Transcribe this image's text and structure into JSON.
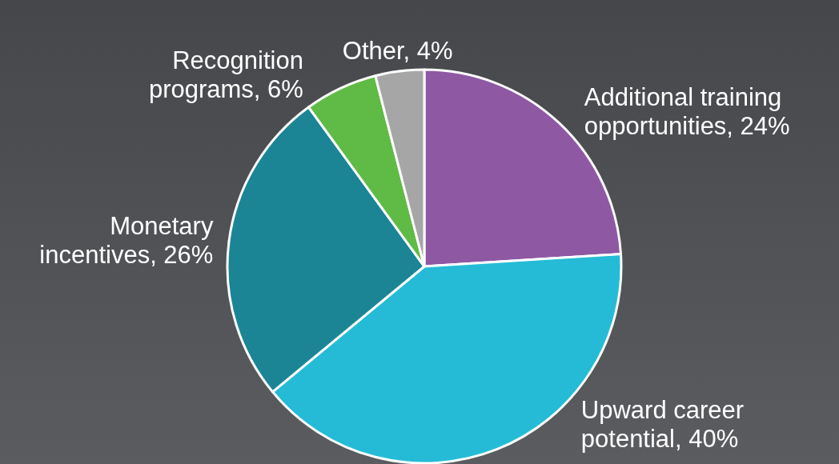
{
  "chart_data": {
    "type": "pie",
    "categories": [
      "Additional training opportunities",
      "Upward career potential",
      "Monetary incentives",
      "Recognition programs",
      "Other"
    ],
    "values": [
      24,
      40,
      26,
      6,
      4
    ],
    "value_labels": [
      "24%",
      "40%",
      "26%",
      "6%",
      "4%"
    ],
    "colors": [
      "#8e58a3",
      "#25bbd6",
      "#1b8596",
      "#60ba46",
      "#a6a6a6"
    ]
  }
}
